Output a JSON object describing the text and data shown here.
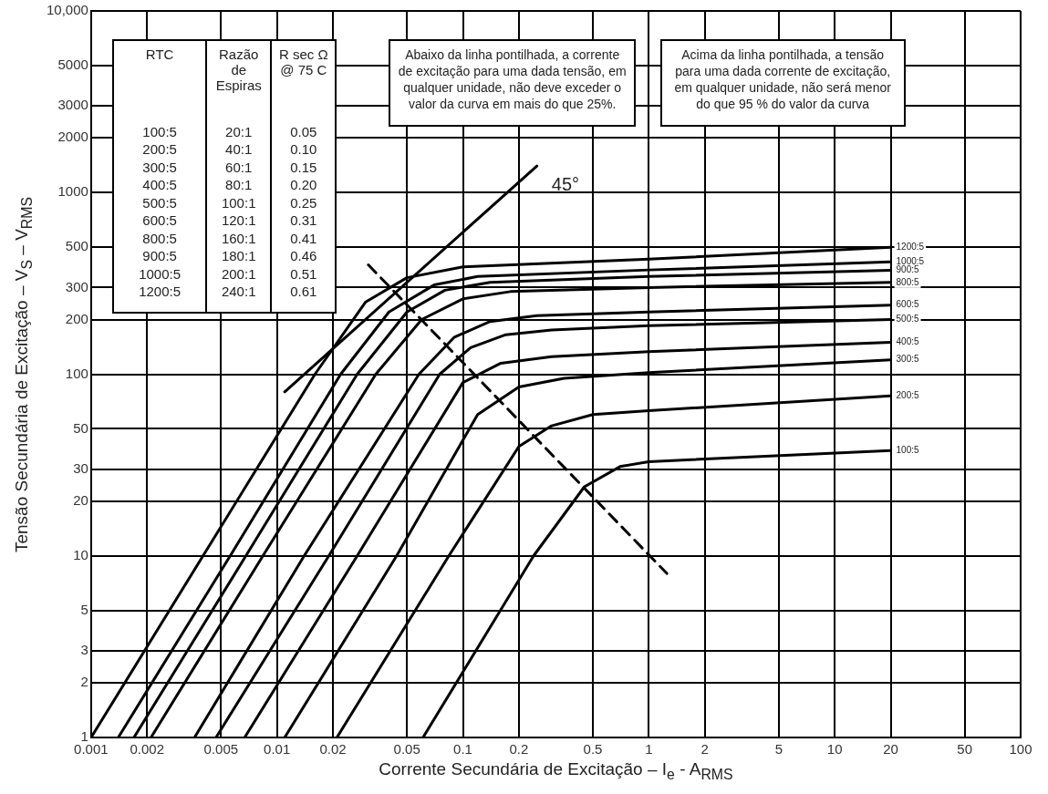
{
  "chart_data": {
    "type": "line",
    "xlabel": "Corrente Secundária de Excitação – I$_{e}$ - A$_{RMS}$",
    "ylabel": "Tensão Secundária de Excitação – V$_{S}$ – V$_{RMS}$",
    "log": "xy",
    "grid": true,
    "legend": false,
    "marker": "none",
    "xlim": [
      0.001,
      100
    ],
    "xticks": [
      0.001,
      0.002,
      0.005,
      0.01,
      0.02,
      0.05,
      0.1,
      0.2,
      0.5,
      1,
      2,
      5,
      10,
      20,
      50,
      100
    ],
    "ylim": [
      1,
      10000
    ],
    "yticks": [
      1,
      2,
      3,
      5,
      10,
      20,
      30,
      50,
      100,
      200,
      300,
      500,
      1000,
      2000,
      3000,
      5000,
      {
        "value": 10000,
        "label": "10,000"
      }
    ],
    "series": [
      {
        "name": "1200:5",
        "color": "#000000",
        "x": [
          0.001,
          0.004,
          0.016,
          0.03,
          0.05,
          0.1,
          1,
          20
        ],
        "values": [
          1,
          10,
          100,
          250,
          340,
          390,
          430,
          500
        ]
      },
      {
        "name": "1000:5",
        "color": "#000000",
        "x": [
          0.0014,
          0.0056,
          0.022,
          0.04,
          0.07,
          0.12,
          1,
          20
        ],
        "values": [
          1,
          10,
          100,
          220,
          310,
          345,
          375,
          415
        ]
      },
      {
        "name": "900:5",
        "color": "#000000",
        "x": [
          0.0017,
          0.0068,
          0.027,
          0.05,
          0.08,
          0.14,
          1,
          20
        ],
        "values": [
          1,
          10,
          100,
          220,
          290,
          320,
          345,
          373
        ]
      },
      {
        "name": "800:5",
        "color": "#000000",
        "x": [
          0.0021,
          0.0084,
          0.034,
          0.06,
          0.1,
          0.18,
          1,
          20
        ],
        "values": [
          1,
          10,
          100,
          200,
          260,
          285,
          300,
          320
        ]
      },
      {
        "name": "600:5",
        "color": "#000000",
        "x": [
          0.0036,
          0.014,
          0.058,
          0.09,
          0.14,
          0.25,
          1,
          20
        ],
        "values": [
          1,
          10,
          100,
          160,
          195,
          210,
          220,
          240
        ]
      },
      {
        "name": "500:5",
        "color": "#000000",
        "x": [
          0.0047,
          0.019,
          0.075,
          0.11,
          0.17,
          0.3,
          1,
          20
        ],
        "values": [
          1,
          10,
          100,
          140,
          165,
          175,
          185,
          200
        ]
      },
      {
        "name": "400:5",
        "color": "#000000",
        "x": [
          0.0067,
          0.027,
          0.1,
          0.16,
          0.3,
          1,
          20
        ],
        "values": [
          1,
          10,
          90,
          115,
          125,
          133,
          150
        ]
      },
      {
        "name": "300:5",
        "color": "#000000",
        "x": [
          0.011,
          0.044,
          0.12,
          0.2,
          0.35,
          1,
          20
        ],
        "values": [
          1,
          10,
          60,
          85,
          95,
          102,
          120
        ]
      },
      {
        "name": "200:5",
        "color": "#000000",
        "x": [
          0.021,
          0.084,
          0.2,
          0.3,
          0.5,
          1,
          20
        ],
        "values": [
          1,
          10,
          40,
          52,
          60,
          63,
          76
        ]
      },
      {
        "name": "100:5",
        "color": "#000000",
        "x": [
          0.061,
          0.24,
          0.45,
          0.7,
          1,
          20
        ],
        "values": [
          1,
          10,
          24,
          31,
          33,
          38
        ]
      },
      {
        "color": "#000000",
        "x": [
          0.011,
          0.25
        ],
        "values": [
          80,
          1400
        ]
      },
      {
        "color": "#000000",
        "line_style": "dashed",
        "x": [
          0.031,
          1.25
        ],
        "values": [
          400,
          8
        ]
      }
    ],
    "annotations": [
      "Abaixo da linha pontilhada, a corrente de excitação para uma dada tensão, em qualquer unidade, não deve exceder o valor da curva em mais do que 25%.",
      "Acima da linha pontilhada, a tensão para uma dada corrente de excitação, em qualquer unidade, não será menor do que 95 % do valor da curva",
      "45°",
      "RTC",
      "Razão de Espiras",
      "R sec Ω @ 75 C",
      "100:5",
      "20:1",
      "0.05",
      "200:5",
      "40:1",
      "0.10",
      "300:5",
      "60:1",
      "0.15",
      "400:5",
      "80:1",
      "0.20",
      "500:5",
      "100:1",
      "0.25",
      "600:5",
      "120:1",
      "0.31",
      "800:5",
      "160:1",
      "0.41",
      "900:5",
      "180:1",
      "0.46",
      "1000:5",
      "200:1",
      "0.51",
      "1200:5",
      "240:1",
      "0.61"
    ]
  }
}
